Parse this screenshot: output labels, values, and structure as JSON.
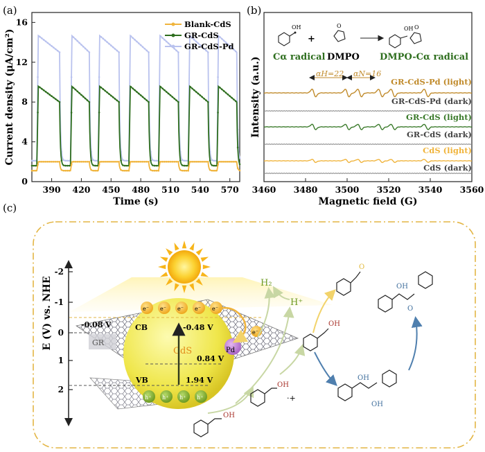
{
  "panel_labels": {
    "a": "(a)",
    "b": "(b)",
    "c": "(c)"
  },
  "colors": {
    "blank": "#f0b43c",
    "gr": "#2e6e1e",
    "grpd": "#b9c2ee",
    "epr_orange": "#c08a2a",
    "epr_green": "#3a7a2a",
    "gray": "#8c8c8c",
    "sun": "#fbc21f",
    "cds": "#f1ea54",
    "dash": "#e3b544"
  },
  "chart_data": [
    {
      "type": "line",
      "xlabel": "Time (s)",
      "ylabel": "Current density (μA/cm²)",
      "xlim": [
        370,
        580
      ],
      "ylim": [
        0,
        17
      ],
      "xticks": [
        390,
        420,
        450,
        480,
        510,
        540,
        570
      ],
      "yticks": [
        0,
        4,
        8,
        12,
        16
      ],
      "light_on_intervals": [
        [
          375,
          398
        ],
        [
          409,
          428
        ],
        [
          437,
          458
        ],
        [
          468,
          488
        ],
        [
          498,
          518
        ],
        [
          528,
          548
        ],
        [
          557,
          577
        ]
      ],
      "legend_position": "top-right",
      "series": [
        {
          "name": "Blank-CdS",
          "color_key": "blank",
          "dark": 1.1,
          "light": 2.0
        },
        {
          "name": "GR-CdS",
          "color_key": "gr",
          "dark": 1.6,
          "light_peak": 9.7,
          "light_end": 8.0
        },
        {
          "name": "GR-CdS-Pd",
          "color_key": "grpd",
          "dark": 2.1,
          "light_peak": 14.8,
          "light_end": 13.0
        }
      ]
    },
    {
      "type": "line",
      "xlabel": "Magnetic field (G)",
      "ylabel": "Intensity (a.u.)",
      "xlim": [
        3460,
        3560
      ],
      "xticks": [
        3460,
        3480,
        3500,
        3520,
        3540,
        3560
      ],
      "hyperfine": {
        "aH_label": "αH=22",
        "aN_label": "αN=16",
        "aH": 22,
        "aN": 16
      },
      "scheme": {
        "reactant1": "Cα radical",
        "plus": "+",
        "reactant2": "DMPO",
        "product": "DMPO-Cα radical"
      },
      "lines": [
        {
          "name": "GR-CdS-Pd (light)",
          "color_key": "epr_orange",
          "amp": 10
        },
        {
          "name": "GR-CdS-Pd (dark)",
          "color_key": "gray",
          "amp": 0
        },
        {
          "name": "GR-CdS (light)",
          "color_key": "epr_green",
          "amp": 7
        },
        {
          "name": "GR-CdS (dark)",
          "color_key": "gray",
          "amp": 0
        },
        {
          "name": "CdS (light)",
          "color_key": "blank",
          "amp": 4
        },
        {
          "name": "CdS (dark)",
          "color_key": "gray",
          "amp": 0
        }
      ]
    }
  ],
  "schematic": {
    "axis_label": "E (V) vs. NHE",
    "ticks": [
      "-2",
      "-1",
      "0",
      "1",
      "2"
    ],
    "gr_potential": "-0.08 V",
    "cb_label": "CB",
    "cb_potential": "-0.48 V",
    "vb_label": "VB",
    "vb_potential": "1.94 V",
    "mid_potential": "0.84 V",
    "gr_label": "GR",
    "cds_label": "CdS",
    "pd_label": "Pd",
    "electron": "e⁻",
    "hole": "h⁺",
    "h2": "H₂",
    "hplus": "H⁺",
    "oh": "OH",
    "o": "O",
    "radical_plus": "·+"
  }
}
